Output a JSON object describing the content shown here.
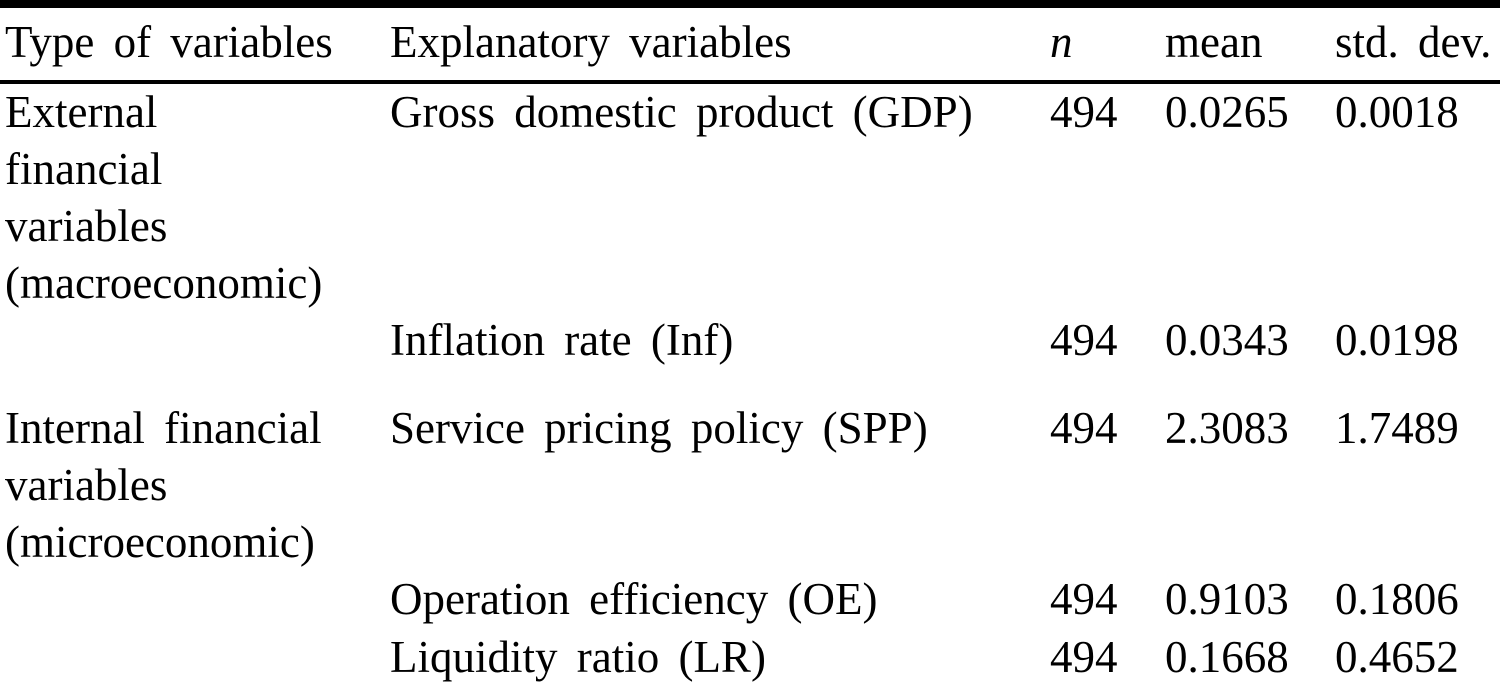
{
  "colors": {
    "text": "#000000",
    "background": "#ffffff",
    "rule": "#000000"
  },
  "table": {
    "headers": {
      "type": "Type of variables",
      "explanatory": "Explanatory variables",
      "n": "n",
      "mean": "mean",
      "std_dev": "std. dev."
    },
    "rows": [
      {
        "type": "External\nfinancial\nvariables\n(macroeconomic)",
        "explanatory": "Gross domestic product (GDP)",
        "n": "494",
        "mean": "0.0265",
        "std_dev": "0.0018"
      },
      {
        "type": "",
        "explanatory": "Inflation rate (Inf)",
        "n": "494",
        "mean": "0.0343",
        "std_dev": "0.0198"
      },
      {
        "type": "Internal financial\nvariables\n(microeconomic)",
        "explanatory": "Service pricing policy (SPP)",
        "n": "494",
        "mean": "2.3083",
        "std_dev": "1.7489"
      },
      {
        "type": "",
        "explanatory": "Operation efficiency (OE)",
        "n": "494",
        "mean": "0.9103",
        "std_dev": "0.1806"
      },
      {
        "type": "",
        "explanatory": "Liquidity ratio (LR)",
        "n": "494",
        "mean": "0.1668",
        "std_dev": "0.4652"
      }
    ]
  }
}
